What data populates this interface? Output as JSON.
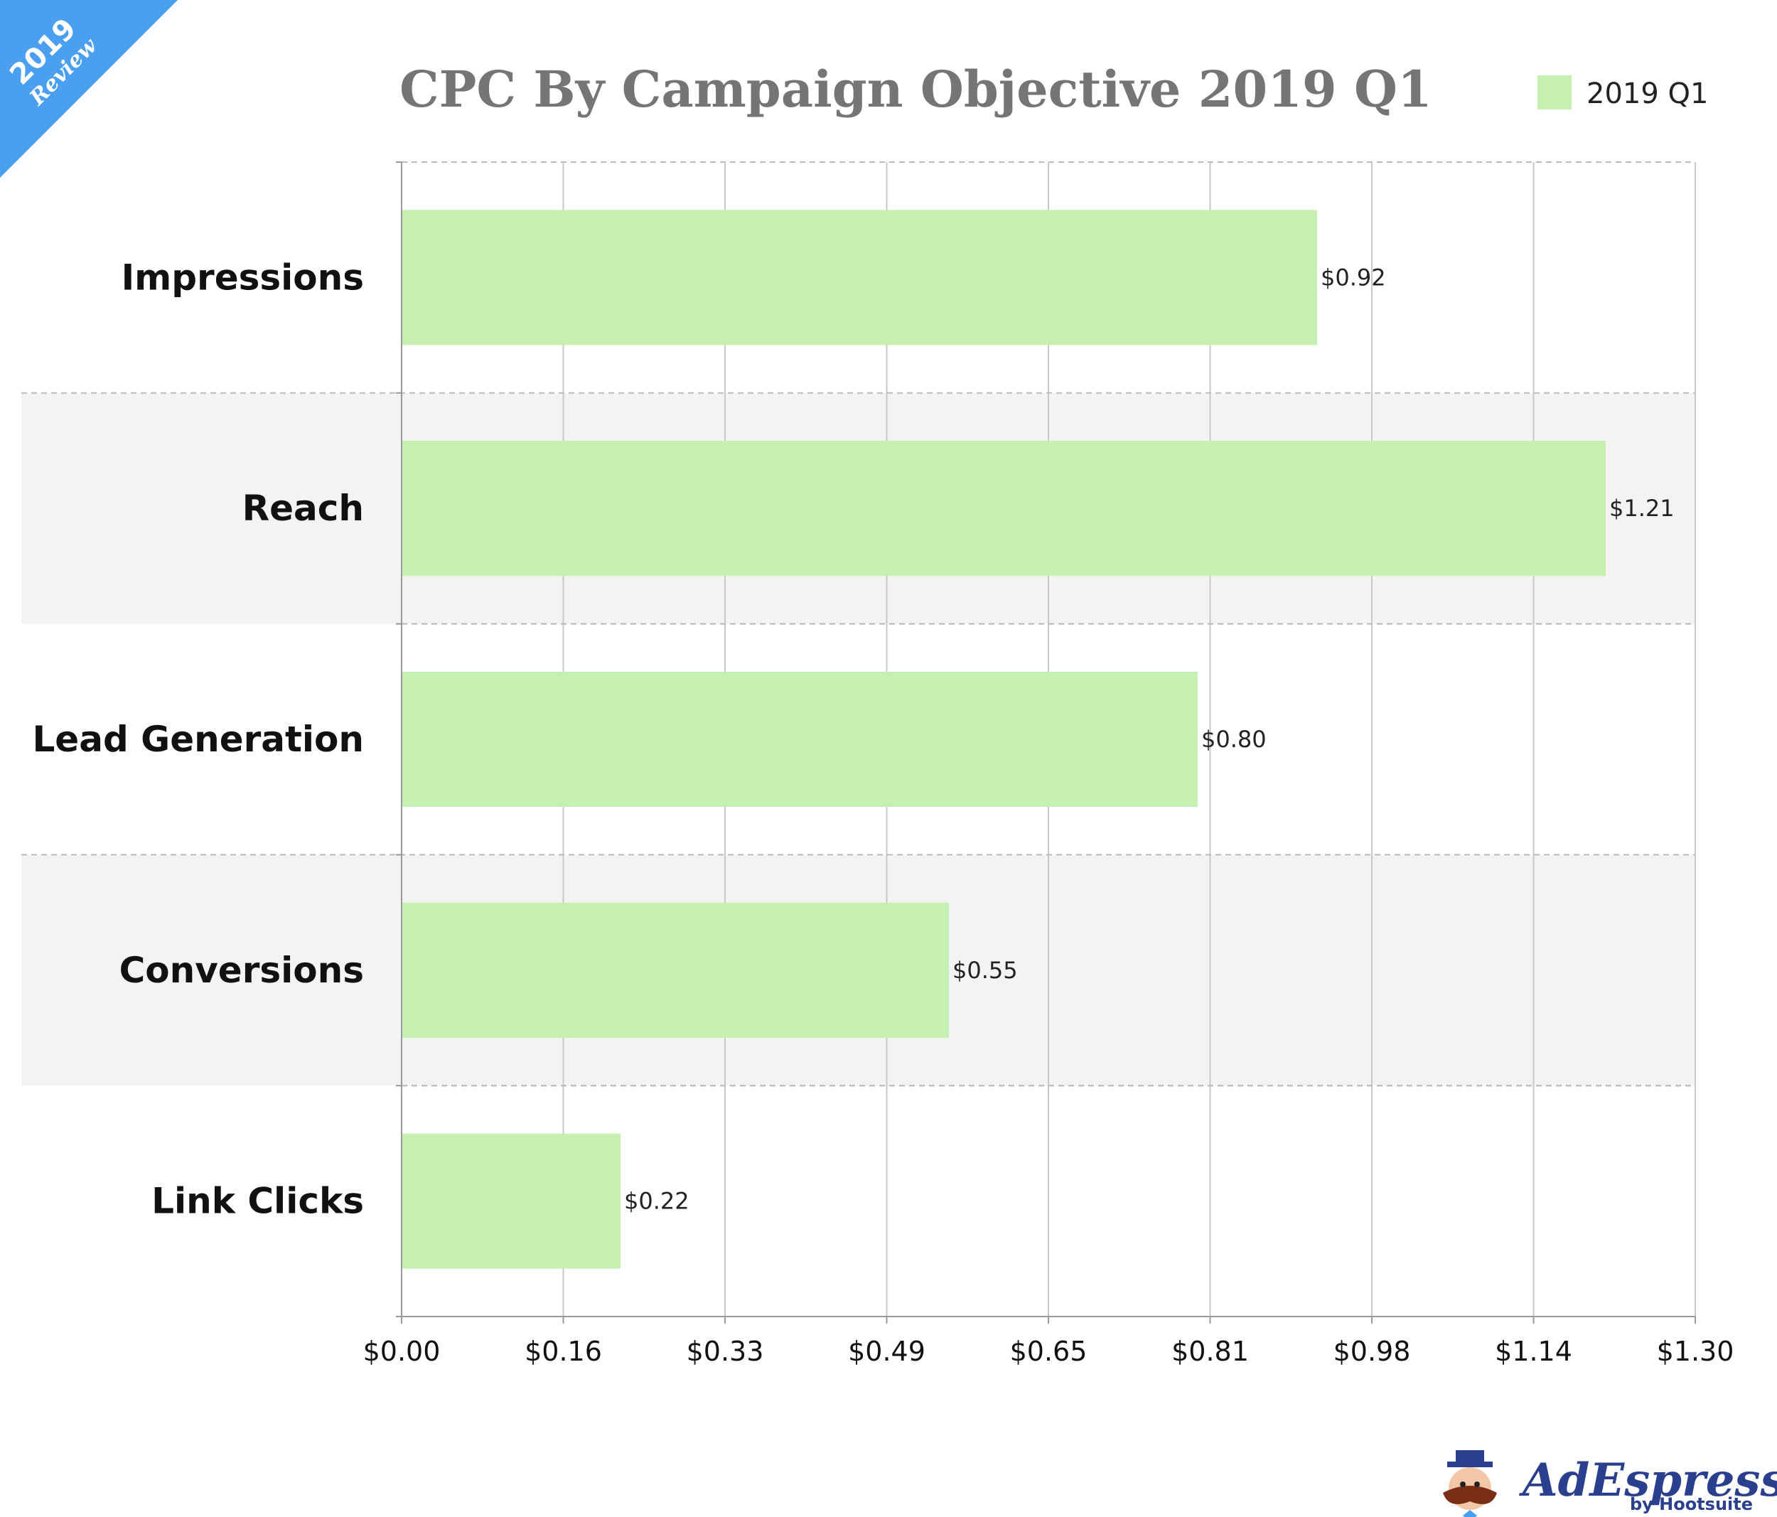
{
  "badge": {
    "year": "2019",
    "text": "Review",
    "color": "#4a9ff0"
  },
  "colors": {
    "bar": "#c5f0b1",
    "band": "#f3f3f3",
    "title": "#757575",
    "brand": "#2b3f8f"
  },
  "legend": {
    "label": "2019 Q1"
  },
  "brand": {
    "name": "AdEspresso",
    "tagline": "by Hootsuite"
  },
  "chart_data": {
    "type": "bar",
    "orientation": "horizontal",
    "title": "CPC By Campaign Objective 2019 Q1",
    "categories": [
      "Impressions",
      "Reach",
      "Lead Generation",
      "Conversions",
      "Link Clicks"
    ],
    "series": [
      {
        "name": "2019 Q1",
        "values": [
          0.92,
          1.21,
          0.8,
          0.55,
          0.22
        ]
      }
    ],
    "data_labels": [
      "$0.92",
      "$1.21",
      "$0.80",
      "$0.55",
      "$0.22"
    ],
    "xticks": [
      "$0.00",
      "$0.16",
      "$0.33",
      "$0.49",
      "$0.65",
      "$0.81",
      "$0.98",
      "$1.14",
      "$1.30"
    ],
    "xlim": [
      0,
      1.3
    ],
    "grid": true,
    "legend_position": "top-right"
  }
}
